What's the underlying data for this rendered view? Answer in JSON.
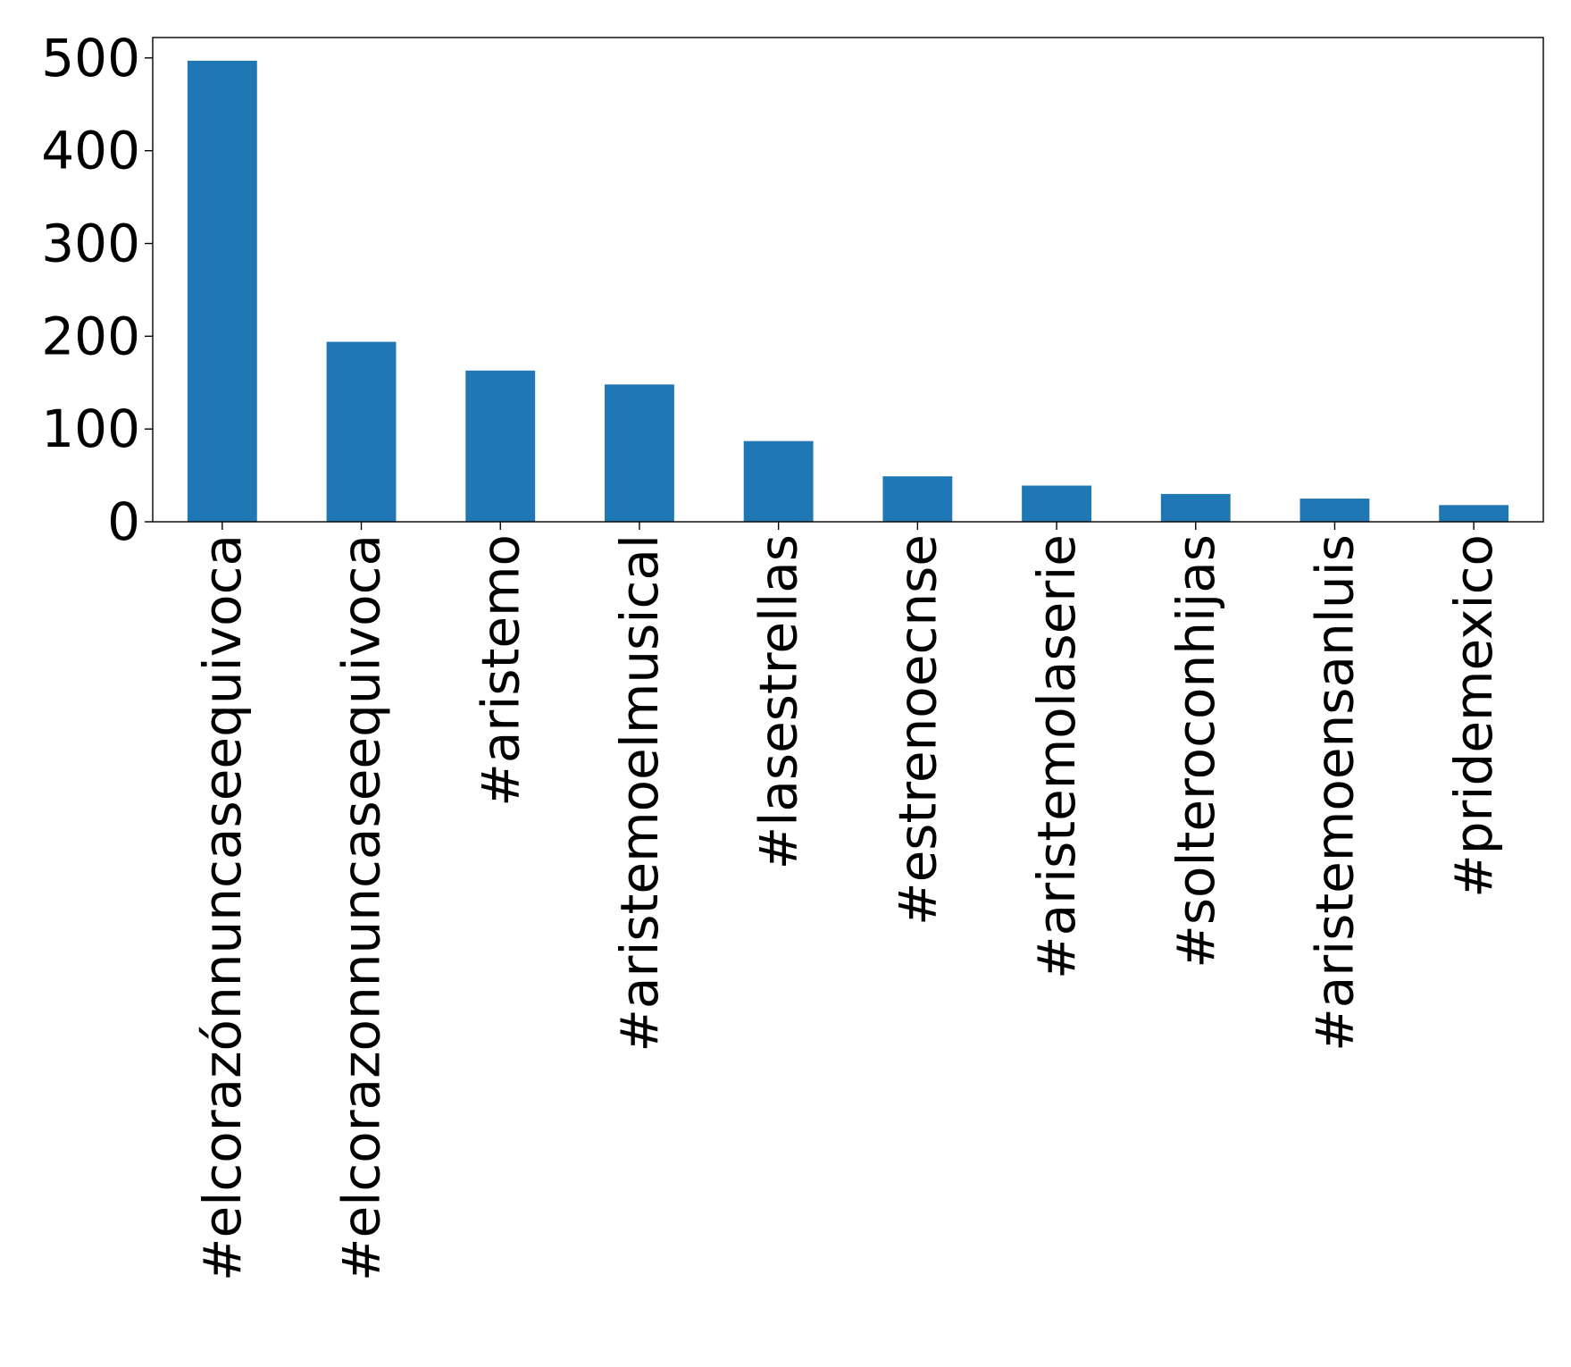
{
  "chart_data": {
    "type": "bar",
    "title": "",
    "xlabel": "",
    "ylabel": "",
    "categories": [
      "#elcorazónnuncaseequivoca",
      "#elcorazonnuncaseequivoca",
      "#aristemo",
      "#aristemoelmusical",
      "#lasestrellas",
      "#estrenoecnse",
      "#aristemolaserie",
      "#solteroconhijas",
      "#aristemoensanluis",
      "#pridemexico"
    ],
    "values": [
      497,
      194,
      163,
      148,
      87,
      49,
      39,
      30,
      25,
      18
    ],
    "yticks": [
      0,
      100,
      200,
      300,
      400,
      500
    ],
    "ylim": [
      0,
      522
    ],
    "bar_color": "#1f77b4",
    "grid": false,
    "legend": "none"
  }
}
